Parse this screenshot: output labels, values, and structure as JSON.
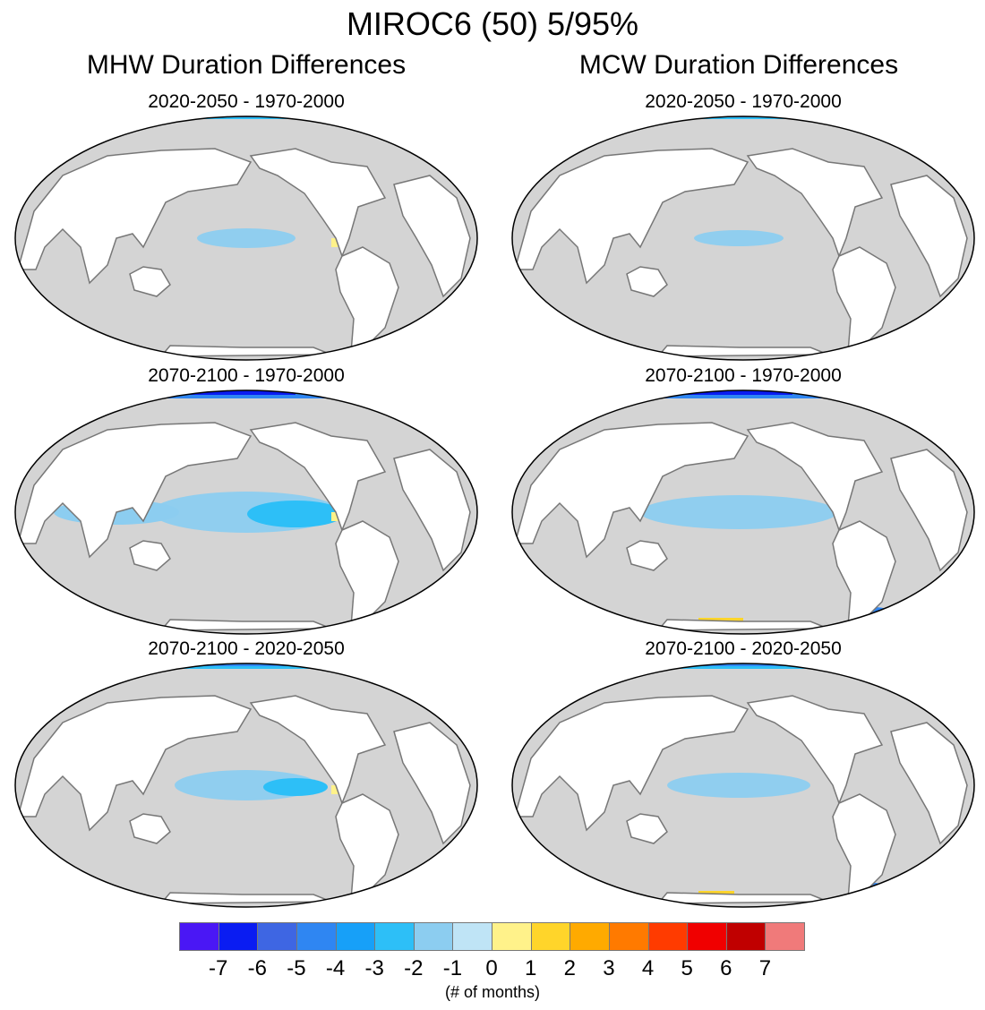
{
  "title": "MIROC6 (50) 5/95%",
  "columns": {
    "left": "MHW Duration Differences",
    "right": "MCW Duration Differences"
  },
  "panels": [
    {
      "subtitle": "2020-2050 - 1970-2000",
      "variable": "MHW",
      "intensity": 1
    },
    {
      "subtitle": "2020-2050 - 1970-2000",
      "variable": "MCW",
      "intensity": 1
    },
    {
      "subtitle": "2070-2100 - 1970-2000",
      "variable": "MHW",
      "intensity": 3
    },
    {
      "subtitle": "2070-2100 - 1970-2000",
      "variable": "MCW",
      "intensity": 3
    },
    {
      "subtitle": "2070-2100 - 2020-2050",
      "variable": "MHW",
      "intensity": 2
    },
    {
      "subtitle": "2070-2100 - 2020-2050",
      "variable": "MCW",
      "intensity": 2
    }
  ],
  "colorbar": {
    "colors": [
      "#4a17f5",
      "#0a1cf2",
      "#3e66e3",
      "#2f86f2",
      "#17a0f8",
      "#2dbff7",
      "#8ccdf0",
      "#bfe4f6",
      "#fff28a",
      "#ffd52a",
      "#ffaa00",
      "#ff7a00",
      "#ff3b00",
      "#f00000",
      "#c00000",
      "#f07a7a"
    ],
    "ticks": [
      "-7",
      "-6",
      "-5",
      "-4",
      "-3",
      "-2",
      "-1",
      "0",
      "1",
      "2",
      "3",
      "4",
      "5",
      "6",
      "7"
    ],
    "label": "(# of months)"
  },
  "map_colors": {
    "ocean": "#d4d4d4",
    "land": "#ffffff",
    "outline": "#000000",
    "coast": "#777777"
  }
}
